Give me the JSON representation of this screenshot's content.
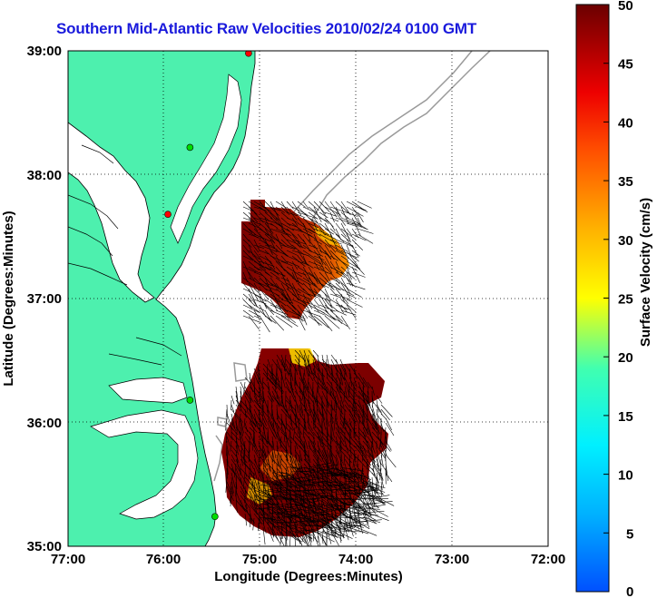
{
  "title": "Southern Mid-Atlantic Raw Velocities 2010/02/24 0100 GMT",
  "axes": {
    "xlabel": "Longitude (Degrees:Minutes)",
    "ylabel": "Latitude (Degrees:Minutes)",
    "xticks": [
      "77:00",
      "76:00",
      "75:00",
      "74:00",
      "73:00",
      "72:00"
    ],
    "yticks": [
      "39:00",
      "38:00",
      "37:00",
      "36:00",
      "35:00"
    ],
    "xlim": [
      -77,
      -72
    ],
    "ylim": [
      35,
      39
    ],
    "grid": "dotted"
  },
  "colorbar": {
    "label": "Surface Velocity (cm/s)",
    "ticks": [
      "50",
      "45",
      "40",
      "35",
      "30",
      "25",
      "20",
      "15",
      "10",
      "5",
      "0"
    ],
    "range": [
      0,
      50
    ],
    "colormap": "jet"
  },
  "colors": {
    "title": "#1a1adc",
    "land": "#4df0ae",
    "coastline": "#000000",
    "bathymetry": "#9a9a9a",
    "velocity_low": "#0040ff",
    "velocity_high": "#6b0000"
  },
  "stations": [
    {
      "lon": -75.12,
      "lat": 38.98,
      "color": "#ff0000"
    },
    {
      "lon": -75.73,
      "lat": 38.22,
      "color": "#00dd00"
    },
    {
      "lon": -75.96,
      "lat": 37.68,
      "color": "#ff0000"
    },
    {
      "lon": -75.73,
      "lat": 36.18,
      "color": "#00dd00"
    },
    {
      "lon": -75.47,
      "lat": 35.24,
      "color": "#00dd00"
    }
  ]
}
